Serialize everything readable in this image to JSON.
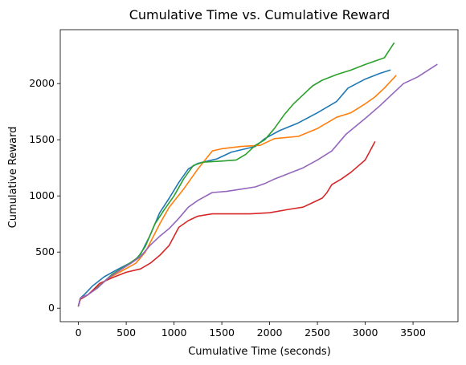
{
  "chart_data": {
    "type": "line",
    "title": "Cumulative Time vs. Cumulative Reward",
    "xlabel": "Cumulative Time (seconds)",
    "ylabel": "Cumulative Reward",
    "xlim": [
      -190,
      3970
    ],
    "ylim": [
      -120,
      2480
    ],
    "xticks": [
      0,
      500,
      1000,
      1500,
      2000,
      2500,
      3000,
      3500
    ],
    "yticks": [
      0,
      500,
      1000,
      1500,
      2000
    ],
    "grid": false,
    "legend": "none",
    "series": [
      {
        "color": "#1f77b4",
        "x": [
          0,
          20,
          60,
          150,
          270,
          420,
          580,
          650,
          750,
          850,
          950,
          1050,
          1150,
          1250,
          1350,
          1450,
          1600,
          1850,
          1950,
          2100,
          2300,
          2500,
          2700,
          2820,
          3000,
          3150,
          3260
        ],
        "y": [
          20,
          90,
          120,
          200,
          280,
          350,
          420,
          480,
          650,
          850,
          980,
          1120,
          1240,
          1290,
          1310,
          1330,
          1390,
          1440,
          1510,
          1580,
          1650,
          1740,
          1840,
          1960,
          2040,
          2090,
          2120
        ]
      },
      {
        "color": "#ff7f0e",
        "x": [
          0,
          20,
          100,
          200,
          320,
          450,
          600,
          700,
          850,
          950,
          1100,
          1250,
          1400,
          1500,
          1700,
          1900,
          2050,
          2300,
          2500,
          2700,
          2850,
          3000,
          3100,
          3200,
          3320
        ],
        "y": [
          20,
          90,
          120,
          190,
          270,
          330,
          400,
          500,
          750,
          900,
          1060,
          1240,
          1400,
          1420,
          1440,
          1450,
          1510,
          1530,
          1600,
          1700,
          1740,
          1820,
          1880,
          1960,
          2070
        ]
      },
      {
        "color": "#2ca02c",
        "x": [
          0,
          20,
          100,
          220,
          350,
          500,
          620,
          700,
          800,
          900,
          1000,
          1100,
          1200,
          1300,
          1500,
          1650,
          1750,
          1850,
          1950,
          2050,
          2150,
          2250,
          2350,
          2450,
          2550,
          2700,
          2850,
          3000,
          3200,
          3300
        ],
        "y": [
          20,
          80,
          120,
          200,
          300,
          380,
          450,
          550,
          750,
          880,
          1000,
          1150,
          1270,
          1300,
          1310,
          1320,
          1370,
          1450,
          1500,
          1600,
          1720,
          1820,
          1900,
          1980,
          2030,
          2080,
          2120,
          2170,
          2230,
          2360
        ]
      },
      {
        "color": "#d62728",
        "x": [
          0,
          20,
          100,
          150,
          220,
          350,
          500,
          650,
          750,
          850,
          950,
          1050,
          1150,
          1250,
          1400,
          1600,
          1800,
          2000,
          2200,
          2350,
          2450,
          2550,
          2600,
          2650,
          2750,
          2850,
          3000,
          3100
        ],
        "y": [
          20,
          80,
          120,
          160,
          220,
          270,
          320,
          350,
          400,
          470,
          560,
          720,
          780,
          820,
          840,
          840,
          840,
          850,
          880,
          900,
          940,
          980,
          1030,
          1100,
          1150,
          1210,
          1320,
          1480
        ]
      },
      {
        "color": "#9467bd",
        "x": [
          0,
          20,
          100,
          200,
          300,
          400,
          550,
          650,
          750,
          850,
          950,
          1050,
          1150,
          1250,
          1400,
          1550,
          1700,
          1850,
          1950,
          2050,
          2200,
          2350,
          2500,
          2650,
          2800,
          3000,
          3150,
          3400,
          3550,
          3750
        ],
        "y": [
          20,
          90,
          120,
          180,
          260,
          320,
          400,
          460,
          560,
          640,
          710,
          800,
          900,
          960,
          1030,
          1040,
          1060,
          1080,
          1110,
          1150,
          1200,
          1250,
          1320,
          1400,
          1550,
          1690,
          1800,
          2000,
          2060,
          2170
        ]
      }
    ]
  }
}
